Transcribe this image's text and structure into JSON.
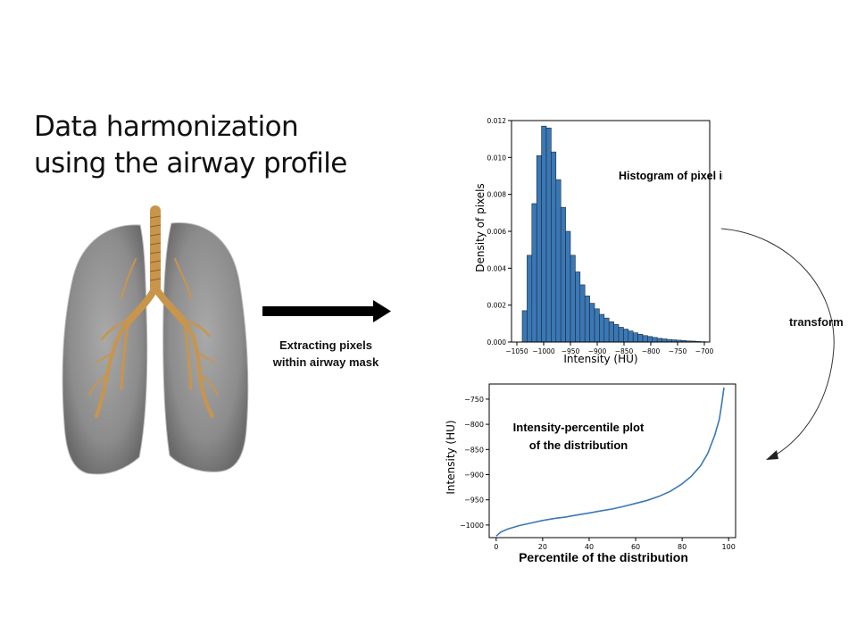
{
  "slide": {
    "title_line1": "Data harmonization",
    "title_line2": "using the airway profile",
    "arrow_caption_line1": "Extracting pixels",
    "arrow_caption_line2": "within airway mask",
    "transform_label": "transform",
    "lung_icon": "lung-airway-render-image"
  },
  "chart_data": [
    {
      "type": "bar",
      "title": "Histogram of pixel intensity",
      "xlabel": "Intensity (HU)",
      "ylabel": "Density of pixels",
      "xlim": [
        -1060,
        -690
      ],
      "ylim": [
        0,
        0.012
      ],
      "xticks": [
        "-1050",
        "-1000",
        "-950",
        "-900",
        "-850",
        "-800",
        "-750",
        "-700"
      ],
      "yticks": [
        "0.000",
        "0.002",
        "0.004",
        "0.006",
        "0.008",
        "0.010",
        "0.012"
      ],
      "bin_width": 9,
      "bin_starts": [
        -1040,
        -1031,
        -1022,
        -1013,
        -1004,
        -995,
        -986,
        -977,
        -968,
        -959,
        -950,
        -941,
        -932,
        -923,
        -914,
        -905,
        -896,
        -887,
        -878,
        -869,
        -860,
        -851,
        -842,
        -833,
        -824,
        -815,
        -806,
        -797,
        -788,
        -779,
        -770,
        -761,
        -752,
        -743,
        -734,
        -725,
        -716,
        -707
      ],
      "values": [
        0.0017,
        0.0047,
        0.0075,
        0.0101,
        0.0117,
        0.0116,
        0.0103,
        0.0088,
        0.0073,
        0.006,
        0.0047,
        0.0038,
        0.0031,
        0.0025,
        0.0021,
        0.0018,
        0.0015,
        0.0013,
        0.0011,
        0.00095,
        0.0008,
        0.0007,
        0.0006,
        0.0005,
        0.00042,
        0.00035,
        0.0003,
        0.00025,
        0.0002,
        0.00017,
        0.00014,
        0.00012,
        0.0001,
        8e-05,
        6e-05,
        5e-05,
        3e-05,
        2e-05
      ],
      "color": "#3a78b5"
    },
    {
      "type": "line",
      "title": "Intensity-percentile plot of the distribution",
      "title_line1": "Intensity-percentile plot",
      "title_line2": "of the distribution",
      "xlabel": "Percentile of the distribution",
      "ylabel": "Intensity (HU)",
      "xlim": [
        -3,
        103
      ],
      "ylim": [
        -1025,
        -720
      ],
      "xticks": [
        "0",
        "20",
        "40",
        "60",
        "80",
        "100"
      ],
      "yticks": [
        "-1000",
        "-950",
        "-900",
        "-850",
        "-800",
        "-750"
      ],
      "x": [
        0,
        2,
        5,
        10,
        15,
        20,
        25,
        30,
        35,
        40,
        45,
        50,
        55,
        60,
        65,
        70,
        75,
        80,
        84,
        88,
        91,
        94,
        96,
        97,
        98
      ],
      "y": [
        -1022,
        -1014,
        -1008,
        -1001,
        -996,
        -991,
        -987,
        -984,
        -980,
        -976,
        -972,
        -968,
        -963,
        -957,
        -951,
        -943,
        -933,
        -918,
        -903,
        -882,
        -858,
        -822,
        -790,
        -760,
        -727
      ],
      "color": "#3a78b5"
    }
  ]
}
